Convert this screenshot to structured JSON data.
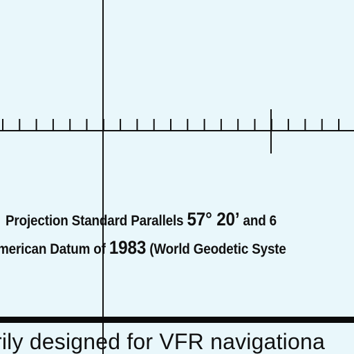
{
  "background_color": "#e9f7fb",
  "ink_color": "#111111",
  "legend": {
    "line1_prefix": "Projection Standard Parallels ",
    "line1_big": "57° 20’",
    "line1_suffix": " and 6",
    "line2_prefix": "merican Datum of ",
    "line2_big": "1983",
    "line2_suffix": " (World Geodetic Syste"
  },
  "footer": {
    "text": "rily designed for VFR navigationa"
  }
}
